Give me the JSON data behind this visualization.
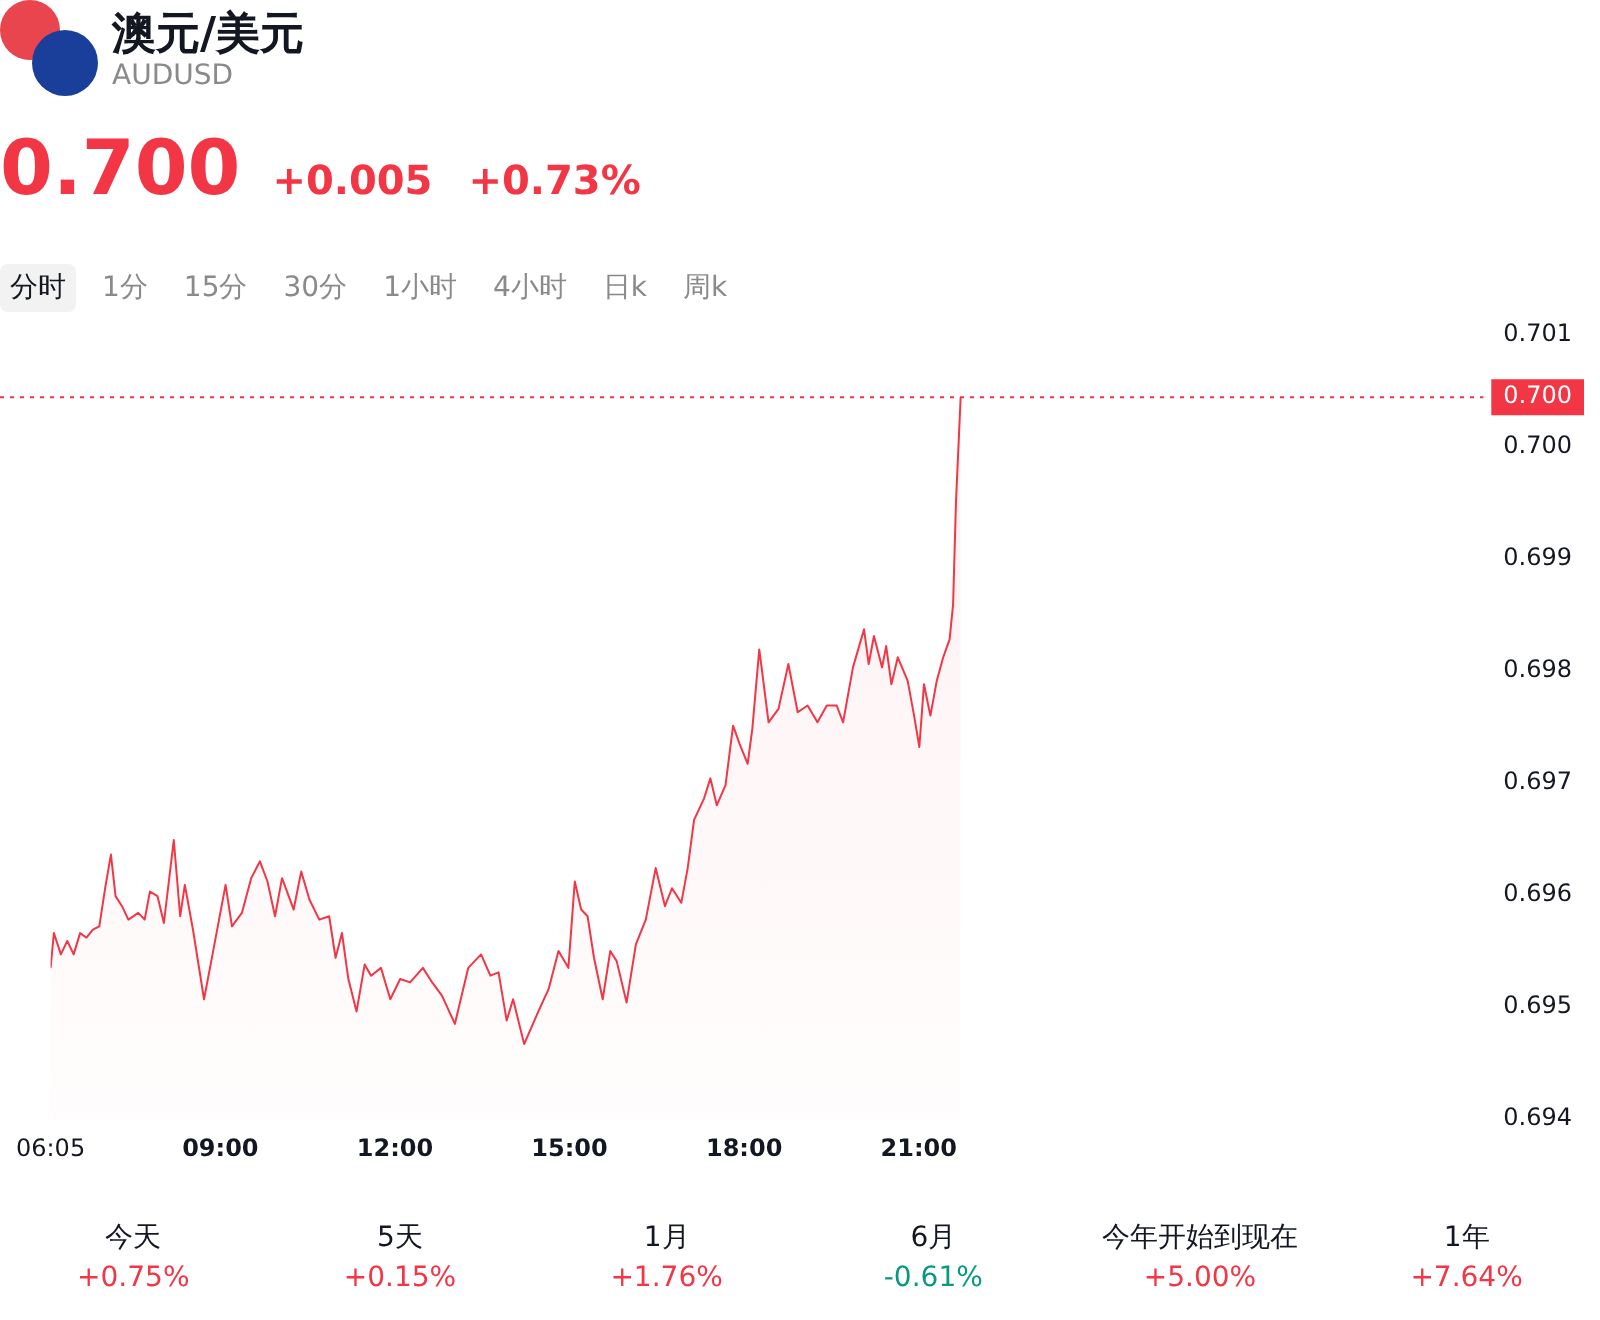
{
  "chart_data": {
    "type": "area",
    "title": "澳元/美元",
    "subtitle": "AUDUSD",
    "annotations": [
      "0.700",
      "+0.005",
      "+0.73%",
      "分时",
      "1分",
      "15分",
      "30分",
      "1小时",
      "4小时",
      "日k",
      "周k",
      "今天",
      "+0.75%",
      "5天",
      "+0.15%",
      "1月",
      "+1.76%",
      "6月",
      "-0.61%",
      "今年开始到现在",
      "+5.00%",
      "1年",
      "+7.64%"
    ],
    "x": [
      6.0833,
      6.14,
      6.26,
      6.37,
      6.48,
      6.59,
      6.7,
      6.81,
      6.92,
      7.03,
      7.12,
      7.2,
      7.31,
      7.42,
      7.59,
      7.7,
      7.79,
      7.92,
      8.03,
      8.2,
      8.31,
      8.39,
      8.53,
      8.72,
      8.92,
      9.09,
      9.2,
      9.37,
      9.53,
      9.68,
      9.81,
      9.94,
      10.06,
      10.26,
      10.39,
      10.53,
      10.7,
      10.87,
      10.98,
      11.09,
      11.2,
      11.34,
      11.48,
      11.59,
      11.76,
      11.92,
      12.09,
      12.26,
      12.48,
      12.64,
      12.81,
      13.03,
      13.26,
      13.48,
      13.64,
      13.78,
      13.92,
      14.03,
      14.22,
      14.48,
      14.64,
      14.81,
      14.98,
      15.09,
      15.2,
      15.31,
      15.42,
      15.57,
      15.7,
      15.81,
      15.98,
      16.14,
      16.31,
      16.48,
      16.64,
      16.76,
      16.92,
      17.03,
      17.14,
      17.31,
      17.42,
      17.53,
      17.68,
      17.81,
      17.92,
      18.06,
      18.14,
      18.26,
      18.42,
      18.59,
      18.76,
      18.92,
      19.09,
      19.26,
      19.42,
      19.59,
      19.7,
      19.87,
      20.06,
      20.14,
      20.23,
      20.37,
      20.44,
      20.53,
      20.64,
      20.81,
      20.92,
      21.01,
      21.09,
      21.2,
      21.31,
      21.42,
      21.53,
      21.59,
      21.64,
      21.72
    ],
    "series": [
      {
        "color": "#f23645",
        "values": [
          0.69535,
          0.69566,
          0.69547,
          0.69559,
          0.69547,
          0.69566,
          0.69562,
          0.69569,
          0.69572,
          0.69609,
          0.69636,
          0.69599,
          0.6959,
          0.69578,
          0.69584,
          0.69578,
          0.69603,
          0.69599,
          0.69575,
          0.69649,
          0.69581,
          0.69609,
          0.69569,
          0.69507,
          0.69562,
          0.69609,
          0.69572,
          0.69584,
          0.69615,
          0.6963,
          0.69612,
          0.69581,
          0.69615,
          0.69587,
          0.69621,
          0.69596,
          0.69578,
          0.69581,
          0.69544,
          0.69566,
          0.69525,
          0.69496,
          0.69538,
          0.69528,
          0.69535,
          0.69507,
          0.69525,
          0.69522,
          0.69535,
          0.69522,
          0.6951,
          0.69485,
          0.69535,
          0.69547,
          0.69528,
          0.69531,
          0.69488,
          0.69507,
          0.69467,
          0.69498,
          0.69516,
          0.6955,
          0.69535,
          0.69612,
          0.69587,
          0.69581,
          0.69544,
          0.69507,
          0.6955,
          0.69541,
          0.69504,
          0.69556,
          0.69578,
          0.69624,
          0.6959,
          0.69606,
          0.69593,
          0.69624,
          0.69667,
          0.69686,
          0.69704,
          0.6968,
          0.69698,
          0.69751,
          0.69735,
          0.69717,
          0.69748,
          0.69819,
          0.69754,
          0.69766,
          0.69806,
          0.69763,
          0.69769,
          0.69754,
          0.69769,
          0.69769,
          0.69754,
          0.69803,
          0.69837,
          0.69806,
          0.69831,
          0.69803,
          0.69822,
          0.69788,
          0.69812,
          0.69791,
          0.6976,
          0.69732,
          0.69788,
          0.6976,
          0.69791,
          0.69812,
          0.69828,
          0.69859,
          0.69951,
          0.70044
        ]
      }
    ],
    "xlim": [
      6.0833,
      30.7
    ],
    "ylim": [
      0.694,
      0.701
    ],
    "xticks": [
      {
        "value": 6.0833,
        "label": "06:05"
      },
      {
        "value": 9,
        "label": "09:00"
      },
      {
        "value": 12,
        "label": "12:00"
      },
      {
        "value": 15,
        "label": "15:00"
      },
      {
        "value": 18,
        "label": "18:00"
      },
      {
        "value": 21,
        "label": "21:00"
      }
    ],
    "yticks": [
      {
        "value": 0.694,
        "label": "0.694"
      },
      {
        "value": 0.695,
        "label": "0.695"
      },
      {
        "value": 0.696,
        "label": "0.696"
      },
      {
        "value": 0.697,
        "label": "0.697"
      },
      {
        "value": 0.698,
        "label": "0.698"
      },
      {
        "value": 0.699,
        "label": "0.699"
      },
      {
        "value": 0.7,
        "label": "0.700"
      },
      {
        "value": 0.701,
        "label": "0.701"
      }
    ],
    "ref_lines": [
      {
        "axis": "y",
        "value": 0.70044,
        "label": "0.700",
        "color": "#f23645",
        "line_style": "dotted"
      }
    ],
    "grid": false,
    "legend": false,
    "marker": "none",
    "line_style": "solid"
  }
}
